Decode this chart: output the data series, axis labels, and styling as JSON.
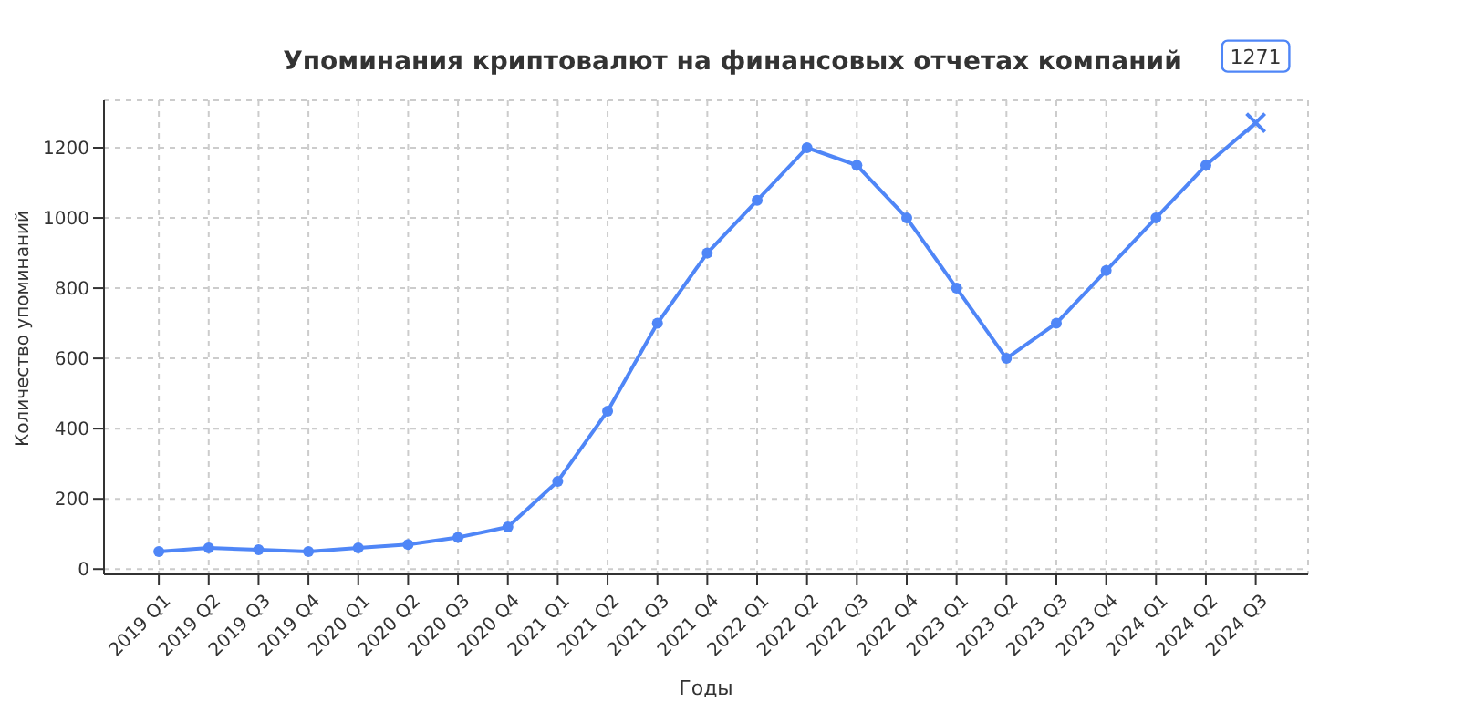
{
  "chart_data": {
    "type": "line",
    "title": "Упоминания криптовалют на финансовых отчетах компаний",
    "xlabel": "Годы",
    "ylabel": "Количество упоминаний",
    "categories": [
      "2019 Q1",
      "2019 Q2",
      "2019 Q3",
      "2019 Q4",
      "2020 Q1",
      "2020 Q2",
      "2020 Q3",
      "2020 Q4",
      "2021 Q1",
      "2021 Q2",
      "2021 Q3",
      "2021 Q4",
      "2022 Q1",
      "2022 Q2",
      "2022 Q3",
      "2022 Q4",
      "2023 Q1",
      "2023 Q2",
      "2023 Q3",
      "2023 Q4",
      "2024 Q1",
      "2024 Q2",
      "2024 Q3"
    ],
    "series": [
      {
        "color": "#4f86f7",
        "values": [
          50,
          60,
          55,
          50,
          60,
          70,
          90,
          120,
          250,
          450,
          700,
          900,
          1050,
          1200,
          1150,
          1000,
          800,
          600,
          700,
          850,
          1000,
          1150,
          1271
        ]
      }
    ],
    "annotations": [
      {
        "text": "1271",
        "x": "2024 Q3",
        "y": 1271
      }
    ],
    "ylim": [
      -15,
      1335
    ],
    "yticks": [
      0,
      200,
      400,
      600,
      800,
      1000,
      1200
    ],
    "grid": true,
    "marker": "circle",
    "line_style": "solid"
  }
}
